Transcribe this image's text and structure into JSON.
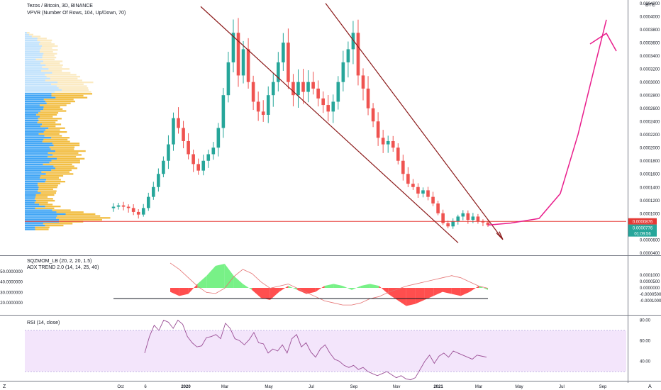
{
  "header": {
    "title": "Tezos / Bitcoin, 3D, BINANCE",
    "indicator": "VPVR (Number Of Rows, 104, Up/Down, 70)"
  },
  "currency_label": "BTC",
  "panes": {
    "momentum_title": "SQZMOM_LB (20, 2, 20, 1.5)",
    "adx_title": "ADX TREND 2.0 (14, 14, 25, 40)",
    "rsi_title": "RSI (14, close)"
  },
  "colors": {
    "up": "#26a69a",
    "down": "#ef5350",
    "vp_up": "#2196f3",
    "vp_down": "#f0b323",
    "trendline": "#8b1a1a",
    "support": "#e53935",
    "projection": "#e91e8c",
    "mom_pos": "#69f07a",
    "mom_neg": "#ff3b3b",
    "rsi": "#9b4f96",
    "rsi_band": "#f3e5fb"
  },
  "chart_data": [
    {
      "type": "candlestick",
      "title": "Tezos / Bitcoin, 3D, BINANCE",
      "ylabel": "BTC",
      "yticks": [
        "0.0004200",
        "0.0004000",
        "0.0003800",
        "0.0003600",
        "0.0003400",
        "0.0003200",
        "0.0003000",
        "0.0002800",
        "0.0002600",
        "0.0002400",
        "0.0002200",
        "0.0002000",
        "0.0001800",
        "0.0001600",
        "0.0001400",
        "0.0001200",
        "0.0001000",
        "0.0000600",
        "0.0000400"
      ],
      "ylim": [
        3.6e-05,
        0.000425
      ],
      "xticks": [
        "Oct",
        "6",
        "2020",
        "Mar",
        "May",
        "Jul",
        "Sep",
        "Nov",
        "2021",
        "Mar",
        "May",
        "Jul",
        "Sep"
      ],
      "price_tags": [
        {
          "text": "0.0000876",
          "color": "#e53935"
        },
        {
          "text": "0.0000776",
          "color": "#26a69a"
        },
        {
          "text": "01:09:56",
          "color": "#26a69a"
        }
      ],
      "support_level": 8.76e-05,
      "path_closes": [
        0.00011,
        0.000112,
        0.00011,
        0.000108,
        0.000102,
        9.8e-05,
        0.000108,
        0.000125,
        0.00014,
        0.00016,
        0.00018,
        0.000205,
        0.000245,
        0.00023,
        0.00021,
        0.00019,
        0.000175,
        0.000165,
        0.00018,
        0.00019,
        0.0002,
        0.00023,
        0.00028,
        0.00033,
        0.000375,
        0.00031,
        0.00035,
        0.0003,
        0.00027,
        0.000255,
        0.00025,
        0.00028,
        0.0003,
        0.00033,
        0.00036,
        0.0003,
        0.00028,
        0.0003,
        0.000285,
        0.0003,
        0.00029,
        0.000275,
        0.000265,
        0.000255,
        0.00027,
        0.0003,
        0.00033,
        0.00035,
        0.000375,
        0.00031,
        0.00029,
        0.00026,
        0.00024,
        0.000215,
        0.000205,
        0.00021,
        0.0002,
        0.00018,
        0.00016,
        0.000145,
        0.00014,
        0.00013,
        0.000135,
        0.000125,
        0.000115,
        0.0001,
        8.5e-05,
        8e-05,
        8.8e-05,
        9.5e-05,
        0.0001,
        9e-05,
        9.5e-05,
        8.8e-05,
        8.6e-05,
        8.2e-05
      ],
      "trendlines": [
        {
          "from": [
            "Oct 2019",
            0.000415
          ],
          "to": [
            "Jan 2021",
            5.5e-05
          ]
        },
        {
          "from": [
            "Jul 2020",
            0.00042
          ],
          "to": [
            "Apr 2021",
            6e-05
          ]
        }
      ],
      "projection": [
        [
          8.2e-05,
          8.5e-05,
          9.2e-05,
          0.00013,
          0.00022,
          0.00033,
          0.000395
        ]
      ]
    },
    {
      "type": "area",
      "title": "SQZMOM_LB (20, 2, 20, 1.5)",
      "yticks_left": [
        "50.0000000",
        "40.0000000",
        "30.0000000",
        "20.0000000"
      ],
      "yticks_right": [
        "0.0001000",
        "0.0000500",
        "0.0000000",
        "-0.0000500",
        "-0.0001000"
      ],
      "momentum": [
        -2e-05,
        -4e-05,
        -3e-05,
        2e-05,
        6e-05,
        0.00011,
        0.00012,
        6e-05,
        2e-05,
        -1e-05,
        -5e-05,
        -6e-05,
        -2e-05,
        1e-05,
        -1e-05,
        -3e-05,
        -2e-05,
        1e-05,
        2e-05,
        1e-05,
        -1e-05,
        1e-05,
        2e-05,
        1e-05,
        -3e-05,
        -6e-05,
        -9e-05,
        -8e-05,
        -6e-05,
        -4e-05,
        -2e-05,
        -3e-05,
        -4e-05,
        -2e-05,
        1e-05,
        -1e-05
      ],
      "adx": [
        58,
        52,
        44,
        36,
        30,
        29,
        34,
        45,
        52,
        48,
        40,
        34,
        36,
        38,
        34,
        30,
        26,
        22,
        20,
        18,
        18,
        20,
        24,
        26,
        30,
        33,
        36,
        38,
        40,
        42,
        44,
        46,
        44,
        40,
        36,
        34
      ],
      "adx_threshold": 25
    },
    {
      "type": "line",
      "title": "RSI (14, close)",
      "yticks": [
        "80.00",
        "60.00",
        "40.00"
      ],
      "band": [
        30,
        70
      ],
      "values": [
        48,
        64,
        75,
        70,
        80,
        78,
        72,
        80,
        76,
        64,
        58,
        54,
        55,
        63,
        64,
        66,
        62,
        77,
        72,
        62,
        60,
        56,
        61,
        68,
        58,
        57,
        48,
        52,
        50,
        56,
        48,
        62,
        66,
        54,
        58,
        49,
        44,
        52,
        56,
        48,
        42,
        40,
        36,
        34,
        36,
        32,
        34,
        30,
        28,
        26,
        28,
        30,
        27,
        24,
        26,
        23,
        22,
        24,
        32,
        40,
        46,
        38,
        45,
        48,
        44,
        50,
        48,
        46,
        44,
        42,
        46,
        45,
        44
      ]
    }
  ]
}
